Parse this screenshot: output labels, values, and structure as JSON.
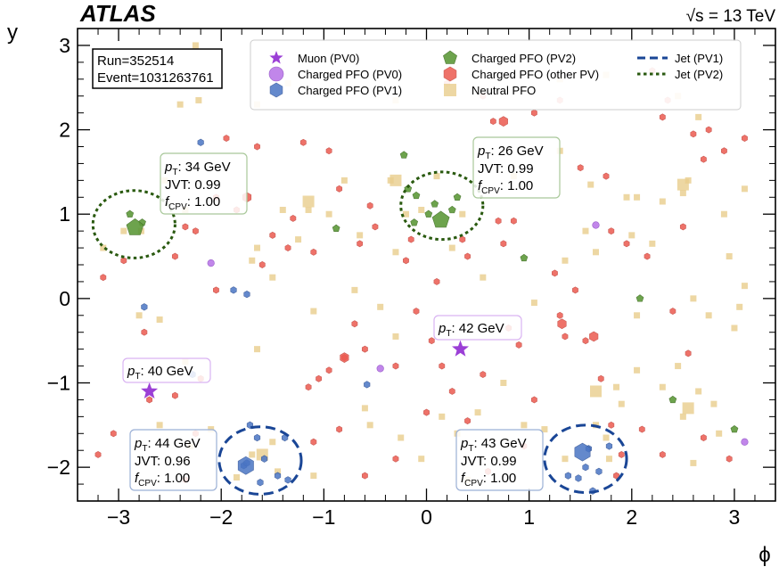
{
  "chart_data": {
    "type": "scatter",
    "experiment": "ATLAS",
    "energy_label": "√s = 13 TeV",
    "xlabel": "ϕ",
    "ylabel": "y",
    "xlim": [
      -3.4,
      3.4
    ],
    "ylim": [
      -2.4,
      3.2
    ],
    "xticks": [
      -3,
      -2,
      -1,
      0,
      1,
      2,
      3
    ],
    "yticks": [
      -2,
      -1,
      0,
      1,
      2,
      3
    ],
    "run_label": "Run=352514",
    "event_label": "Event=1031263761",
    "colors": {
      "muon": "#9b3fd6",
      "charged_pv0": "#bb7ae8",
      "charged_pv1": "#4a75c4",
      "charged_pv2": "#5e9a3a",
      "charged_other": "#ec5a50",
      "neutral": "#e8cd8c",
      "jet_pv1": "#1a4696",
      "jet_pv2": "#2a5a10"
    },
    "legend": [
      {
        "key": "muon",
        "label": "Muon (PV0)"
      },
      {
        "key": "charged_pv0",
        "label": "Charged PFO (PV0)"
      },
      {
        "key": "charged_pv1",
        "label": "Charged PFO (PV1)"
      },
      {
        "key": "charged_pv2",
        "label": "Charged PFO (PV2)"
      },
      {
        "key": "charged_other",
        "label": "Charged PFO (other PV)"
      },
      {
        "key": "neutral",
        "label": "Neutral PFO"
      },
      {
        "key": "jet_pv1",
        "label": "Jet (PV1)"
      },
      {
        "key": "jet_pv2",
        "label": "Jet (PV2)"
      }
    ],
    "jets": [
      {
        "pv": "pv2",
        "phi": -2.85,
        "y": 0.88,
        "r": 0.4,
        "pt": "34 GeV",
        "jvt": "0.99",
        "fcpv": "1.00"
      },
      {
        "pv": "pv2",
        "phi": 0.15,
        "y": 1.1,
        "r": 0.4,
        "pt": "26 GeV",
        "jvt": "0.99",
        "fcpv": "1.00"
      },
      {
        "pv": "pv1",
        "phi": -1.62,
        "y": -1.92,
        "r": 0.4,
        "pt": "44 GeV",
        "jvt": "0.96",
        "fcpv": "1.00"
      },
      {
        "pv": "pv1",
        "phi": 1.55,
        "y": -1.9,
        "r": 0.4,
        "pt": "43 GeV",
        "jvt": "0.99",
        "fcpv": "1.00"
      }
    ],
    "muons": [
      {
        "phi": -2.7,
        "y": -1.1,
        "pt": "40 GeV"
      },
      {
        "phi": 0.33,
        "y": -0.6,
        "pt": "42 GeV"
      }
    ],
    "charged_pv0": [
      [
        -0.45,
        -0.83
      ],
      [
        1.65,
        0.87
      ],
      [
        -2.1,
        0.42
      ],
      [
        3.1,
        -1.7
      ]
    ],
    "charged_pv1": [
      [
        -2.2,
        1.85
      ],
      [
        -2.75,
        -0.1
      ],
      [
        -1.88,
        0.1
      ],
      [
        -1.75,
        0.05
      ],
      [
        -0.58,
        -1.02
      ],
      [
        -2.28,
        -0.9
      ],
      [
        -1.72,
        -1.5
      ],
      [
        -1.65,
        -1.65
      ],
      [
        -1.78,
        -1.98
      ],
      [
        -1.58,
        -1.9
      ],
      [
        -1.38,
        -1.65
      ],
      [
        -1.45,
        -2.1
      ],
      [
        -1.35,
        -2.15
      ],
      [
        -1.62,
        -2.18
      ],
      [
        -1.75,
        -1.95
      ],
      [
        1.58,
        -1.78
      ],
      [
        1.55,
        -2.0
      ],
      [
        1.68,
        -2.05
      ],
      [
        1.48,
        -2.13
      ],
      [
        1.38,
        -2.1
      ],
      [
        1.62,
        -2.28
      ],
      [
        1.78,
        -1.75
      ]
    ],
    "charged_pv1_big": [
      [
        -1.76,
        -1.98
      ],
      [
        1.52,
        -1.82
      ]
    ],
    "charged_pv2": [
      [
        -0.22,
        1.7
      ],
      [
        -0.1,
        1.22
      ],
      [
        0.08,
        1.12
      ],
      [
        0.02,
        1.0
      ],
      [
        0.25,
        1.05
      ],
      [
        -0.12,
        0.9
      ],
      [
        0.3,
        1.2
      ],
      [
        -0.18,
        1.3
      ],
      [
        -0.88,
        0.83
      ],
      [
        0.95,
        0.48
      ],
      [
        2.08,
        0.0
      ],
      [
        2.4,
        -1.2
      ],
      [
        3.0,
        -1.55
      ],
      [
        -2.89,
        1.0
      ],
      [
        -2.77,
        0.9
      ]
    ],
    "charged_pv2_big": [
      [
        -2.84,
        0.84
      ],
      [
        0.14,
        0.93
      ]
    ],
    "charged_other": [
      [
        -2.1,
        2.55
      ],
      [
        -1.95,
        1.9
      ],
      [
        -1.2,
        1.85
      ],
      [
        -1.5,
        0.75
      ],
      [
        -1.35,
        0.6
      ],
      [
        -1.1,
        0.55
      ],
      [
        -0.65,
        0.65
      ],
      [
        -0.5,
        0.85
      ],
      [
        0.4,
        0.5
      ],
      [
        0.7,
        0.92
      ],
      [
        0.75,
        0.65
      ],
      [
        0.85,
        0.92
      ],
      [
        0.65,
        2.1
      ],
      [
        1.05,
        2.2
      ],
      [
        1.3,
        2.35
      ],
      [
        0.55,
        2.4
      ],
      [
        0.2,
        2.55
      ],
      [
        2.3,
        2.15
      ],
      [
        2.35,
        2.35
      ],
      [
        2.6,
        1.95
      ],
      [
        2.75,
        2.0
      ],
      [
        1.75,
        1.45
      ],
      [
        1.8,
        0.8
      ],
      [
        1.95,
        0.65
      ],
      [
        2.15,
        0.5
      ],
      [
        2.5,
        0.85
      ],
      [
        2.7,
        1.65
      ],
      [
        2.9,
        1.75
      ],
      [
        3.1,
        1.9
      ],
      [
        -2.45,
        0.5
      ],
      [
        -2.95,
        0.45
      ],
      [
        -3.15,
        0.25
      ],
      [
        -2.05,
        0.1
      ],
      [
        -2.25,
        0.8
      ],
      [
        -0.6,
        -0.6
      ],
      [
        -0.8,
        -0.7
      ],
      [
        -0.95,
        -0.85
      ],
      [
        -1.05,
        -0.95
      ],
      [
        -1.15,
        -1.05
      ],
      [
        -0.1,
        -0.15
      ],
      [
        0.05,
        -0.5
      ],
      [
        0.15,
        -0.8
      ],
      [
        0.25,
        -1.1
      ],
      [
        0.0,
        -1.35
      ],
      [
        0.4,
        -1.45
      ],
      [
        0.8,
        -0.35
      ],
      [
        0.9,
        -0.55
      ],
      [
        1.3,
        -0.2
      ],
      [
        1.35,
        -0.45
      ],
      [
        1.55,
        -0.5
      ],
      [
        1.7,
        -0.95
      ],
      [
        1.8,
        -1.5
      ],
      [
        1.9,
        -1.85
      ],
      [
        2.1,
        -1.55
      ],
      [
        2.3,
        -1.85
      ],
      [
        2.7,
        -1.65
      ],
      [
        2.95,
        -1.9
      ],
      [
        -2.7,
        -1.2
      ],
      [
        -2.45,
        -1.15
      ],
      [
        -2.75,
        -0.4
      ],
      [
        -3.2,
        -1.85
      ],
      [
        -2.35,
        -2.15
      ],
      [
        -2.25,
        -1.6
      ],
      [
        -1.1,
        -1.7
      ],
      [
        -0.85,
        -1.55
      ],
      [
        -0.6,
        -2.1
      ],
      [
        -0.3,
        -1.9
      ],
      [
        0.6,
        -2.05
      ],
      [
        0.95,
        -1.75
      ],
      [
        1.85,
        -2.1
      ],
      [
        -1.3,
        0.95
      ],
      [
        -0.2,
        0.45
      ],
      [
        0.1,
        0.2
      ],
      [
        -2.05,
        1.2
      ],
      [
        -1.85,
        1.05
      ],
      [
        2.2,
        2.7
      ],
      [
        -0.85,
        1.3
      ],
      [
        -0.15,
        0.7
      ],
      [
        0.35,
        0.7
      ],
      [
        1.25,
        0.3
      ],
      [
        -3.05,
        -1.6
      ],
      [
        -0.55,
        1.1
      ],
      [
        -1.6,
        0.4
      ],
      [
        -2.35,
        0.85
      ],
      [
        -2.2,
        -0.95
      ],
      [
        -0.7,
        -0.3
      ],
      [
        -0.3,
        -0.8
      ],
      [
        0.55,
        -0.9
      ],
      [
        1.05,
        -1.2
      ],
      [
        1.45,
        0.1
      ],
      [
        2.4,
        -0.15
      ],
      [
        2.55,
        -0.65
      ],
      [
        -1.65,
        1.8
      ],
      [
        1.5,
        1.55
      ],
      [
        -0.95,
        1.75
      ]
    ],
    "charged_other_big": [
      [
        -1.75,
        1.2
      ],
      [
        0.75,
        2.1
      ],
      [
        -0.8,
        -0.7
      ],
      [
        1.63,
        -0.45
      ],
      [
        1.32,
        -0.3
      ]
    ],
    "neutral": [
      [
        -2.25,
        3.0
      ],
      [
        -1.35,
        2.55
      ],
      [
        -2.4,
        2.3
      ],
      [
        -2.22,
        2.35
      ],
      [
        -1.65,
        2.3
      ],
      [
        -0.3,
        2.35
      ],
      [
        1.3,
        2.6
      ],
      [
        1.75,
        2.65
      ],
      [
        2.45,
        2.4
      ],
      [
        2.65,
        2.15
      ],
      [
        2.55,
        1.4
      ],
      [
        2.3,
        1.15
      ],
      [
        2.5,
        1.25
      ],
      [
        2.9,
        1.0
      ],
      [
        3.1,
        1.3
      ],
      [
        2.6,
        0.0
      ],
      [
        2.95,
        0.5
      ],
      [
        3.1,
        0.15
      ],
      [
        2.75,
        -0.2
      ],
      [
        3.0,
        -0.35
      ],
      [
        2.45,
        -0.8
      ],
      [
        2.8,
        -1.25
      ],
      [
        2.65,
        -1.1
      ],
      [
        2.5,
        -1.4
      ],
      [
        2.3,
        -1.05
      ],
      [
        1.9,
        -1.25
      ],
      [
        1.75,
        -1.65
      ],
      [
        1.65,
        -1.5
      ],
      [
        0.95,
        -1.5
      ],
      [
        0.75,
        -1.0
      ],
      [
        0.5,
        -1.35
      ],
      [
        0.3,
        -1.6
      ],
      [
        -0.25,
        -1.65
      ],
      [
        -0.3,
        -0.45
      ],
      [
        -0.45,
        -0.1
      ],
      [
        -0.7,
        0.1
      ],
      [
        -1.1,
        -0.15
      ],
      [
        -1.5,
        0.25
      ],
      [
        -1.7,
        0.45
      ],
      [
        -1.65,
        0.6
      ],
      [
        -1.15,
        1.05
      ],
      [
        -1.25,
        0.7
      ],
      [
        -0.65,
        0.75
      ],
      [
        -0.3,
        0.55
      ],
      [
        0.25,
        0.6
      ],
      [
        0.55,
        0.25
      ],
      [
        1.05,
        -0.05
      ],
      [
        1.35,
        0.45
      ],
      [
        1.55,
        0.8
      ],
      [
        1.65,
        0.55
      ],
      [
        2.0,
        0.75
      ],
      [
        2.05,
        1.2
      ],
      [
        1.6,
        1.35
      ],
      [
        1.3,
        1.75
      ],
      [
        -0.35,
        1.4
      ],
      [
        -0.8,
        1.4
      ],
      [
        -1.4,
        1.05
      ],
      [
        -2.35,
        1.05
      ],
      [
        -2.55,
        1.4
      ],
      [
        -3.15,
        0.6
      ],
      [
        -2.8,
        -0.2
      ],
      [
        -2.6,
        -0.25
      ],
      [
        -2.35,
        -0.75
      ],
      [
        -2.6,
        -1.5
      ],
      [
        -2.1,
        -1.55
      ],
      [
        -2.3,
        -1.75
      ],
      [
        -1.5,
        -1.7
      ],
      [
        -1.45,
        -2.05
      ],
      [
        -1.85,
        -2.12
      ],
      [
        -1.7,
        -1.85
      ],
      [
        -1.1,
        -2.1
      ],
      [
        -0.55,
        -1.5
      ],
      [
        -0.05,
        -1.9
      ],
      [
        0.15,
        -1.4
      ],
      [
        0.4,
        -2.15
      ],
      [
        1.15,
        -1.55
      ],
      [
        1.35,
        -1.9
      ],
      [
        1.78,
        -1.9
      ],
      [
        2.05,
        -0.2
      ],
      [
        2.2,
        0.65
      ],
      [
        0.1,
        1.45
      ],
      [
        -0.05,
        1.05
      ],
      [
        -0.95,
        1.0
      ],
      [
        -0.2,
        1.0
      ],
      [
        0.35,
        1.0
      ],
      [
        1.95,
        1.2
      ],
      [
        -2.95,
        0.8
      ],
      [
        -2.78,
        0.8
      ],
      [
        3.05,
        -0.1
      ],
      [
        2.05,
        -0.85
      ],
      [
        1.85,
        -1.05
      ],
      [
        2.6,
        -1.95
      ],
      [
        2.85,
        -1.6
      ],
      [
        -1.45,
        2.5
      ],
      [
        0.85,
        1.45
      ],
      [
        -0.6,
        -1.3
      ],
      [
        -1.65,
        -0.6
      ]
    ],
    "neutral_big": [
      [
        -1.15,
        1.15
      ],
      [
        -0.3,
        1.4
      ],
      [
        2.5,
        1.35
      ],
      [
        -1.6,
        -1.85
      ],
      [
        2.55,
        -1.3
      ],
      [
        1.65,
        -1.1
      ]
    ]
  }
}
